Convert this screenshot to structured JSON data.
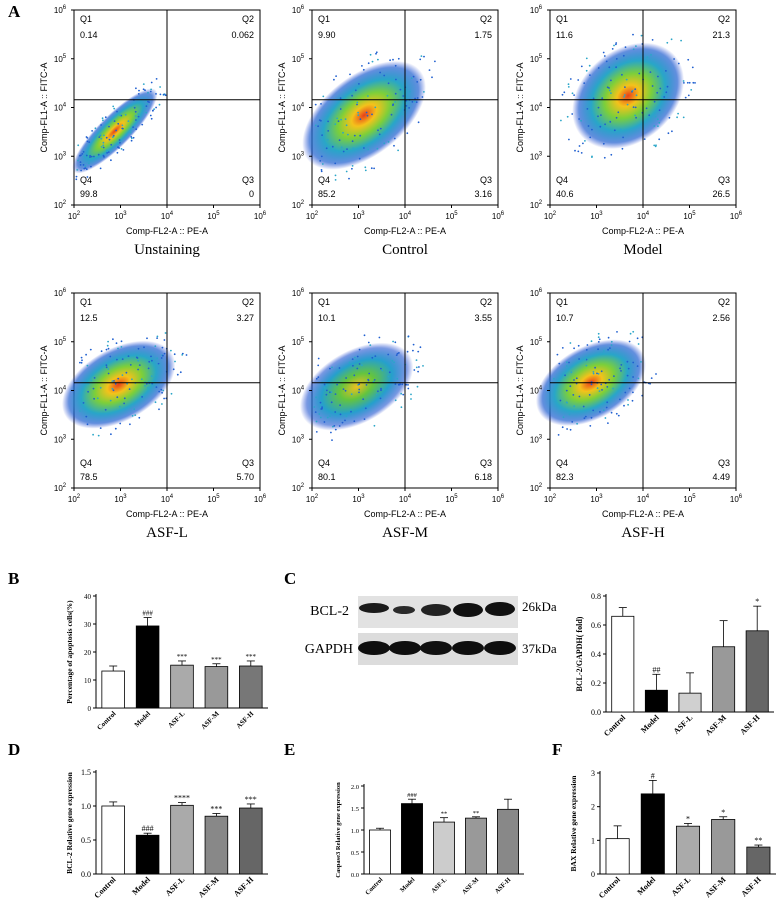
{
  "panel_labels": [
    "A",
    "B",
    "C",
    "D",
    "E",
    "F"
  ],
  "flow": {
    "x_axis_label": "Comp-FL2-A :: PE-A",
    "y_axis_label": "Comp-FL1-A :: FITC-A",
    "tick_labels": [
      "10",
      "2",
      "3",
      "4",
      "5",
      "6"
    ],
    "quadrant_names": [
      "Q1",
      "Q2",
      "Q3",
      "Q4"
    ],
    "plots": [
      {
        "title": "Unstaining",
        "q1": "0.14",
        "q2": "0.062",
        "q3": "0",
        "q4": "99.8"
      },
      {
        "title": "Control",
        "q1": "9.90",
        "q2": "1.75",
        "q3": "3.16",
        "q4": "85.2"
      },
      {
        "title": "Model",
        "q1": "11.6",
        "q2": "21.3",
        "q3": "26.5",
        "q4": "40.6"
      },
      {
        "title": "ASF-L",
        "q1": "12.5",
        "q2": "3.27",
        "q3": "5.70",
        "q4": "78.5"
      },
      {
        "title": "ASF-M",
        "q1": "10.1",
        "q2": "3.55",
        "q3": "6.18",
        "q4": "80.1"
      },
      {
        "title": "ASF-H",
        "q1": "10.7",
        "q2": "2.56",
        "q3": "4.49",
        "q4": "82.3"
      }
    ]
  },
  "western_blot": {
    "labels": [
      "BCL-2",
      "GAPDH"
    ],
    "sizes": [
      "26kDa",
      "37kDa"
    ]
  },
  "chart_data": [
    {
      "id": "B",
      "type": "bar",
      "ylabel": "Percentage of apoptosis cells(%)",
      "categories": [
        "Control",
        "Model",
        "ASF-L",
        "ASF-M",
        "ASF-H"
      ],
      "values": [
        13.2,
        29.3,
        15.3,
        14.8,
        15.0
      ],
      "errors": [
        1.8,
        3.0,
        1.5,
        1.0,
        1.8
      ],
      "annotations": [
        "",
        "###",
        "***",
        "***",
        "***"
      ],
      "ylim": [
        0,
        40
      ],
      "ticks": [
        0,
        10,
        20,
        30,
        40
      ],
      "fills": [
        "#ffffff",
        "#000000",
        "#aaaaaa",
        "#999999",
        "#777777"
      ]
    },
    {
      "id": "C",
      "type": "bar",
      "ylabel": "BCL-2/GAPDH( fold)",
      "categories": [
        "Control",
        "Model",
        "ASF-L",
        "ASF-M",
        "ASF-H"
      ],
      "values": [
        0.66,
        0.15,
        0.13,
        0.45,
        0.56
      ],
      "errors": [
        0.06,
        0.11,
        0.14,
        0.18,
        0.17
      ],
      "annotations": [
        "",
        "##",
        "",
        "",
        "*"
      ],
      "ylim": [
        0,
        0.8
      ],
      "ticks": [
        0.0,
        0.2,
        0.4,
        0.6,
        0.8
      ],
      "fills": [
        "#ffffff",
        "#000000",
        "#d0d0d0",
        "#999999",
        "#666666"
      ]
    },
    {
      "id": "D",
      "type": "bar",
      "ylabel": "BCL-2 Relative gene expression",
      "categories": [
        "Control",
        "Model",
        "ASF-L",
        "ASF-M",
        "ASF-H"
      ],
      "values": [
        1.0,
        0.57,
        1.01,
        0.85,
        0.97
      ],
      "errors": [
        0.06,
        0.03,
        0.04,
        0.04,
        0.06
      ],
      "annotations": [
        "",
        "###",
        "****",
        "***",
        "***"
      ],
      "ylim": [
        0,
        1.5
      ],
      "ticks": [
        0.0,
        0.5,
        1.0,
        1.5
      ],
      "fills": [
        "#ffffff",
        "#000000",
        "#aaaaaa",
        "#888888",
        "#666666"
      ]
    },
    {
      "id": "E",
      "type": "bar",
      "ylabel": "Caspase3 Relative gene expression",
      "categories": [
        "Control",
        "Model",
        "ASF-L",
        "ASF-M",
        "ASF-H"
      ],
      "values": [
        1.0,
        1.6,
        1.18,
        1.27,
        1.47
      ],
      "errors": [
        0.04,
        0.1,
        0.1,
        0.03,
        0.23
      ],
      "annotations": [
        "",
        "###",
        "**",
        "**",
        ""
      ],
      "ylim": [
        0,
        2.0
      ],
      "ticks": [
        0.0,
        0.5,
        1.0,
        1.5,
        2.0
      ],
      "fills": [
        "#ffffff",
        "#000000",
        "#cccccc",
        "#999999",
        "#888888"
      ]
    },
    {
      "id": "F",
      "type": "bar",
      "ylabel": "BAX Relative gene expression",
      "categories": [
        "Control",
        "Model",
        "ASF-L",
        "ASF-M",
        "ASF-H"
      ],
      "values": [
        1.05,
        2.38,
        1.42,
        1.62,
        0.8
      ],
      "errors": [
        0.38,
        0.4,
        0.08,
        0.08,
        0.06
      ],
      "annotations": [
        "",
        "#",
        "*",
        "*",
        "**"
      ],
      "ylim": [
        0,
        3
      ],
      "ticks": [
        0,
        1,
        2,
        3
      ],
      "fills": [
        "#ffffff",
        "#000000",
        "#aaaaaa",
        "#999999",
        "#666666"
      ]
    }
  ]
}
